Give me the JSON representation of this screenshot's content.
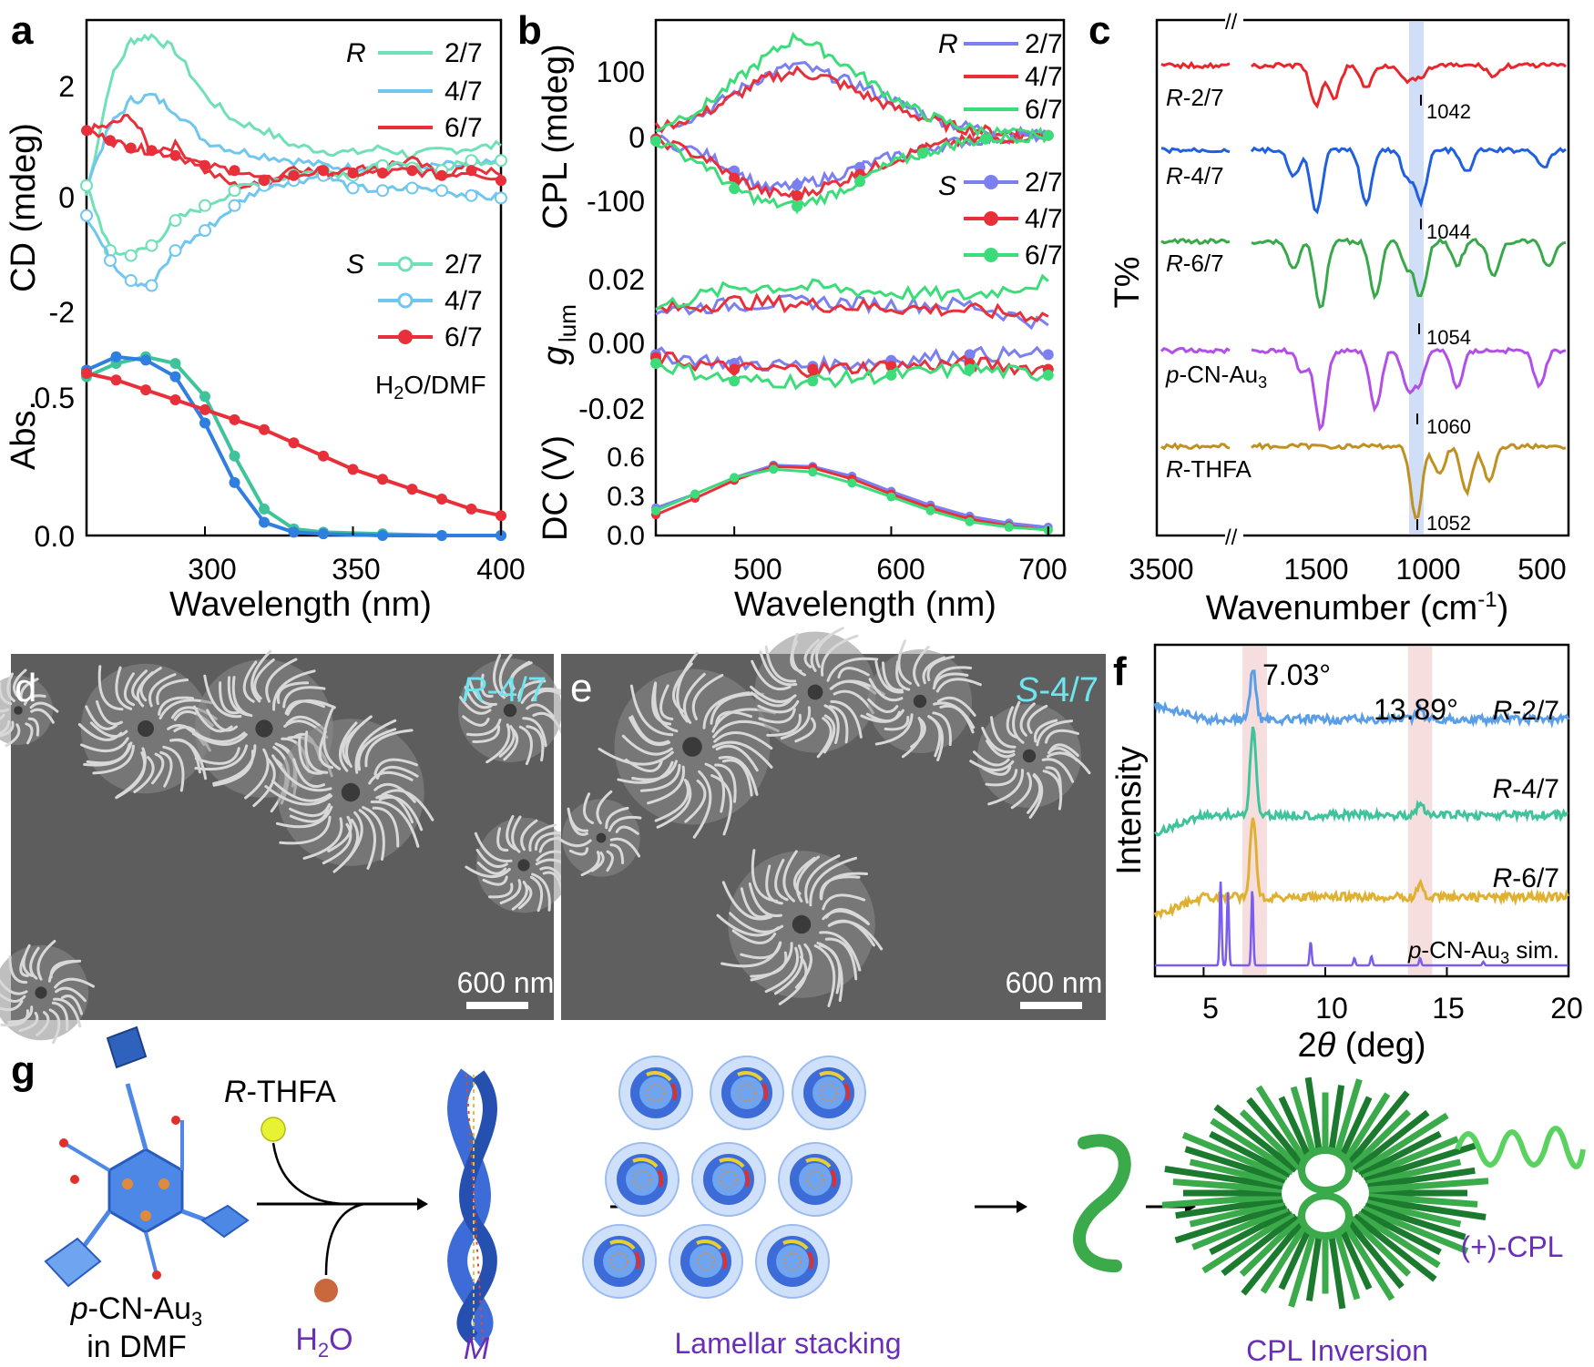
{
  "panel_letters": {
    "a": "a",
    "b": "b",
    "c": "c",
    "d": "d",
    "e": "e",
    "f": "f",
    "g": "g"
  },
  "colors": {
    "mint": "#6fe0b8",
    "sky": "#6fc6ee",
    "red": "#e8303a",
    "blue_b": "#7b7ff0",
    "green": "#3ddc7a",
    "ir_red": "#e8262c",
    "ir_blue": "#1f5fe0",
    "ir_green": "#3aa84a",
    "ir_purple": "#b14fe8",
    "ir_gold": "#c09020",
    "xrd_blue": "#5b9ee8",
    "xrd_teal": "#3ec39a",
    "xrd_gold": "#e0b030",
    "xrd_purple": "#7a5cf0",
    "highlight_blue": "#c9d8f6",
    "highlight_pink": "#f4d6d6",
    "sem_label": "#6ee6f0",
    "accent_purple": "#6a2fb8"
  },
  "chart_data": [
    {
      "panel": "a",
      "type": "line",
      "ylabel_top": "CD (mdeg)",
      "ylabel_bottom": "Abs.",
      "xlabel": "Wavelength (nm)",
      "xlim": [
        260,
        400
      ],
      "x_ticks": [
        "300",
        "350",
        "400"
      ],
      "cd_ylim": [
        -2.6,
        2.9
      ],
      "cd_ticks": [
        "2",
        "0",
        "-2"
      ],
      "abs_ylim": [
        0,
        0.6
      ],
      "abs_ticks": [
        "0.5",
        "0.0"
      ],
      "legend_R_title": "R",
      "legend_S_title": "S",
      "legend_labels": [
        "2/7",
        "4/7",
        "6/7"
      ],
      "solvent_label": "H2O/DMF",
      "series": [
        {
          "name": "R 2/7",
          "x": [
            260,
            268,
            275,
            282,
            290,
            300,
            310,
            320,
            330,
            340,
            350,
            360,
            370,
            380,
            390,
            400
          ],
          "y": [
            -0.5,
            1.8,
            2.6,
            2.7,
            2.4,
            1.5,
            1.0,
            0.8,
            0.5,
            0.4,
            0.35,
            0.45,
            0.3,
            0.4,
            0.45,
            0.5
          ]
        },
        {
          "name": "R 4/7",
          "x": [
            260,
            268,
            275,
            282,
            290,
            300,
            310,
            320,
            330,
            340,
            350,
            360,
            370,
            380,
            390,
            400
          ],
          "y": [
            -0.3,
            0.9,
            1.4,
            1.5,
            1.2,
            0.6,
            0.4,
            0.3,
            0.2,
            0.1,
            0.05,
            0.15,
            0.0,
            0.1,
            0.1,
            0.15
          ]
        },
        {
          "name": "R 6/7",
          "x": [
            260,
            268,
            275,
            282,
            290,
            300,
            310,
            320,
            330,
            340,
            350,
            360,
            370,
            380,
            390,
            400
          ],
          "y": [
            0.8,
            0.9,
            1.1,
            0.4,
            0.5,
            0.0,
            -0.3,
            -0.3,
            0.1,
            -0.1,
            0.0,
            0.1,
            0.2,
            -0.1,
            0.1,
            -0.1
          ]
        },
        {
          "name": "S 2/7",
          "x": [
            260,
            268,
            275,
            282,
            290,
            300,
            310,
            320,
            330,
            340,
            350,
            360,
            370,
            380,
            390,
            400
          ],
          "y": [
            -0.3,
            -1.6,
            -1.7,
            -1.5,
            -1.0,
            -0.7,
            -0.4,
            -0.2,
            -0.1,
            0.0,
            -0.1,
            0.1,
            0.05,
            0.0,
            0.2,
            0.2
          ]
        },
        {
          "name": "S 4/7",
          "x": [
            260,
            268,
            275,
            282,
            290,
            300,
            310,
            320,
            330,
            340,
            350,
            360,
            370,
            380,
            390,
            400
          ],
          "y": [
            -0.9,
            -1.8,
            -2.2,
            -2.3,
            -1.6,
            -1.2,
            -0.7,
            -0.3,
            -0.2,
            -0.1,
            -0.35,
            -0.4,
            -0.35,
            -0.4,
            -0.5,
            -0.55
          ]
        },
        {
          "name": "S 6/7",
          "x": [
            260,
            268,
            275,
            282,
            290,
            300,
            310,
            320,
            330,
            340,
            350,
            360,
            370,
            380,
            390,
            400
          ],
          "y": [
            0.8,
            0.6,
            0.45,
            0.4,
            0.3,
            0.1,
            0.0,
            -0.2,
            -0.1,
            0.0,
            -0.05,
            -0.05,
            0.0,
            -0.1,
            0.0,
            -0.2
          ]
        }
      ],
      "abs_series": [
        {
          "name": "2/7",
          "x": [
            260,
            270,
            280,
            290,
            300,
            310,
            320,
            330,
            340,
            360,
            380,
            400
          ],
          "y": [
            0.48,
            0.52,
            0.54,
            0.52,
            0.42,
            0.24,
            0.08,
            0.02,
            0.01,
            0.005,
            0.0,
            0.0
          ]
        },
        {
          "name": "4/7",
          "x": [
            260,
            270,
            280,
            290,
            300,
            310,
            320,
            330,
            340,
            360,
            380,
            400
          ],
          "y": [
            0.5,
            0.54,
            0.53,
            0.48,
            0.34,
            0.16,
            0.04,
            0.01,
            0.005,
            0.0,
            0.0,
            0.0
          ]
        },
        {
          "name": "6/7",
          "x": [
            260,
            270,
            280,
            290,
            300,
            310,
            320,
            330,
            340,
            350,
            360,
            370,
            380,
            390,
            400
          ],
          "y": [
            0.49,
            0.47,
            0.44,
            0.41,
            0.38,
            0.35,
            0.32,
            0.28,
            0.24,
            0.2,
            0.17,
            0.14,
            0.11,
            0.08,
            0.06
          ]
        }
      ]
    },
    {
      "panel": "b",
      "type": "line",
      "xlabel": "Wavelength (nm)",
      "xlim": [
        450,
        710
      ],
      "x_ticks": [
        "500",
        "600",
        "700"
      ],
      "cpl_label": "CPL (mdeg)",
      "cpl_ylim": [
        -130,
        160
      ],
      "cpl_ticks": [
        "100",
        "0",
        "-100"
      ],
      "glum_label_main": "g",
      "glum_label_sub": "lum",
      "glum_ylim": [
        -0.03,
        0.032
      ],
      "glum_ticks": [
        "0.02",
        "0.00",
        "-0.02"
      ],
      "dc_label": "DC (V)",
      "dc_ylim": [
        0,
        0.66
      ],
      "dc_ticks": [
        "0.6",
        "0.3",
        "0.0"
      ],
      "legend_R_title": "R",
      "legend_S_title": "S",
      "legend_labels": [
        "2/7",
        "4/7",
        "6/7"
      ],
      "cpl_series": [
        {
          "name": "R 2/7",
          "x": [
            450,
            480,
            500,
            520,
            540,
            560,
            580,
            600,
            620,
            640,
            660,
            680,
            700
          ],
          "y": [
            10,
            30,
            60,
            85,
            100,
            85,
            70,
            50,
            30,
            15,
            8,
            3,
            0
          ]
        },
        {
          "name": "R 4/7",
          "x": [
            450,
            480,
            500,
            520,
            540,
            560,
            580,
            600,
            620,
            640,
            660,
            680,
            700
          ],
          "y": [
            10,
            30,
            55,
            80,
            90,
            80,
            60,
            40,
            25,
            12,
            6,
            2,
            0
          ]
        },
        {
          "name": "R 6/7",
          "x": [
            450,
            480,
            500,
            520,
            540,
            560,
            580,
            600,
            620,
            640,
            660,
            680,
            700
          ],
          "y": [
            10,
            40,
            75,
            110,
            140,
            115,
            85,
            55,
            30,
            15,
            5,
            2,
            0
          ]
        },
        {
          "name": "S 2/7",
          "x": [
            450,
            480,
            500,
            520,
            540,
            560,
            580,
            600,
            620,
            640,
            660,
            680,
            700
          ],
          "y": [
            -5,
            -25,
            -50,
            -75,
            -70,
            -60,
            -45,
            -30,
            -20,
            -10,
            -5,
            -2,
            0
          ]
        },
        {
          "name": "S 4/7",
          "x": [
            450,
            480,
            500,
            520,
            540,
            560,
            580,
            600,
            620,
            640,
            660,
            680,
            700
          ],
          "y": [
            -5,
            -30,
            -60,
            -80,
            -85,
            -70,
            -55,
            -35,
            -20,
            -10,
            -5,
            -2,
            0
          ]
        },
        {
          "name": "S 6/7",
          "x": [
            450,
            480,
            500,
            520,
            540,
            560,
            580,
            600,
            620,
            640,
            660,
            680,
            700
          ],
          "y": [
            -8,
            -40,
            -75,
            -95,
            -100,
            -85,
            -65,
            -40,
            -25,
            -12,
            -5,
            -2,
            0
          ]
        }
      ],
      "glum_series": [
        {
          "name": "R 2/7",
          "x": [
            450,
            500,
            550,
            600,
            650,
            700
          ],
          "y": [
            0.01,
            0.012,
            0.013,
            0.012,
            0.012,
            0.005
          ]
        },
        {
          "name": "R 4/7",
          "x": [
            450,
            500,
            550,
            600,
            650,
            700
          ],
          "y": [
            0.01,
            0.013,
            0.012,
            0.011,
            0.01,
            0.008
          ]
        },
        {
          "name": "R 6/7",
          "x": [
            450,
            500,
            550,
            600,
            650,
            700
          ],
          "y": [
            0.011,
            0.018,
            0.018,
            0.016,
            0.015,
            0.02
          ]
        },
        {
          "name": "S 2/7",
          "x": [
            450,
            500,
            550,
            600,
            650,
            700
          ],
          "y": [
            -0.005,
            -0.008,
            -0.009,
            -0.007,
            -0.005,
            -0.005
          ]
        },
        {
          "name": "S 4/7",
          "x": [
            450,
            500,
            550,
            600,
            650,
            700
          ],
          "y": [
            -0.006,
            -0.01,
            -0.01,
            -0.009,
            -0.008,
            -0.01
          ]
        },
        {
          "name": "S 6/7",
          "x": [
            450,
            500,
            550,
            600,
            650,
            700
          ],
          "y": [
            -0.008,
            -0.014,
            -0.014,
            -0.012,
            -0.01,
            -0.012
          ]
        }
      ],
      "dc_series": [
        {
          "name": "2/7",
          "x": [
            450,
            475,
            500,
            525,
            550,
            575,
            600,
            625,
            650,
            675,
            700
          ],
          "y": [
            0.2,
            0.3,
            0.42,
            0.51,
            0.5,
            0.43,
            0.32,
            0.22,
            0.14,
            0.09,
            0.06
          ]
        },
        {
          "name": "4/7",
          "x": [
            450,
            475,
            500,
            525,
            550,
            575,
            600,
            625,
            650,
            675,
            700
          ],
          "y": [
            0.15,
            0.27,
            0.4,
            0.5,
            0.49,
            0.41,
            0.3,
            0.2,
            0.12,
            0.07,
            0.04
          ]
        },
        {
          "name": "6/7",
          "x": [
            450,
            475,
            500,
            525,
            550,
            575,
            600,
            625,
            650,
            675,
            700
          ],
          "y": [
            0.18,
            0.3,
            0.42,
            0.48,
            0.46,
            0.38,
            0.28,
            0.18,
            0.1,
            0.06,
            0.04
          ]
        }
      ]
    },
    {
      "panel": "c",
      "type": "line",
      "ylabel": "T%",
      "xlabel_main": "Wavenumber (cm",
      "xlabel_sup": "-1",
      "xlabel_end": ")",
      "x_ticks": [
        "3500",
        "1500",
        "1000",
        "500"
      ],
      "traces": [
        {
          "label_italic": "R",
          "label_rest": "-2/7",
          "peak_label": "1042"
        },
        {
          "label_italic": "R",
          "label_rest": "-4/7",
          "peak_label": "1044"
        },
        {
          "label_italic": "R",
          "label_rest": "-6/7",
          "peak_label": "1054"
        },
        {
          "label_italic": "p",
          "label_rest": "-CN-Au",
          "label_sub": "3",
          "peak_label": "1060"
        },
        {
          "label_italic": "R",
          "label_rest": "-THFA",
          "peak_label": "1052"
        }
      ]
    },
    {
      "panel": "f",
      "type": "line",
      "ylabel": "Intensity",
      "xlabel_pre": "2",
      "xlabel_theta": "θ",
      "xlabel_post": " (deg)",
      "xlim": [
        3,
        20
      ],
      "x_ticks": [
        "5",
        "10",
        "15",
        "20"
      ],
      "peak_labels": [
        "7.03°",
        "13.89°"
      ],
      "traces": [
        {
          "label_italic": "R",
          "label_rest": "-2/7"
        },
        {
          "label_italic": "R",
          "label_rest": "-4/7"
        },
        {
          "label_italic": "R",
          "label_rest": "-6/7"
        },
        {
          "label_italic": "p",
          "label_rest": "-CN-Au",
          "label_sub": "3",
          "label_end": " sim."
        }
      ]
    }
  ],
  "sem": {
    "d": {
      "tag_italic": "R",
      "tag_rest": "-4/7",
      "scale": "600 nm"
    },
    "e": {
      "tag_italic": "S",
      "tag_rest": "-4/7",
      "scale": "600 nm"
    }
  },
  "scheme": {
    "reagent_italic": "R",
    "reagent_rest": "-THFA",
    "water_pre": "H",
    "water_sub": "2",
    "water_post": "O",
    "start_line1_italic": "p",
    "start_line1_rest": "-CN-Au",
    "start_line1_sub": "3",
    "start_line2": "in DMF",
    "helix_label": "M",
    "lamellar_label": "Lamellar stacking",
    "cpl_inversion_label": "CPL Inversion",
    "cpl_sign_label": "(+)-CPL"
  }
}
